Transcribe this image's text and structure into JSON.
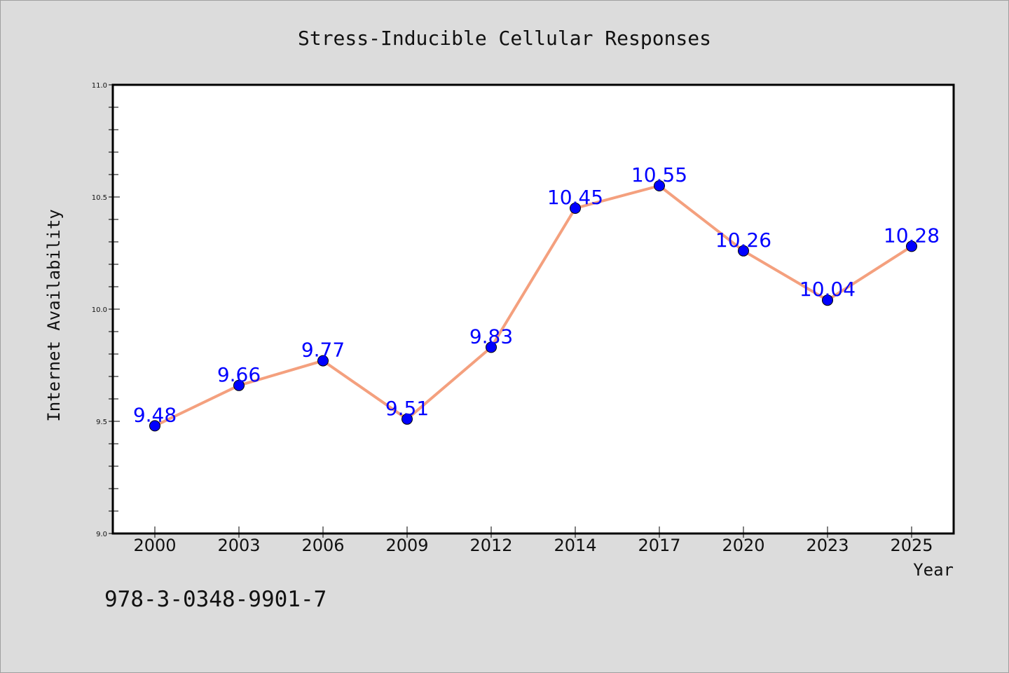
{
  "footer": {
    "isbn": "978-3-0348-9901-7"
  },
  "chart_data": {
    "type": "line",
    "title": "Stress-Inducible Cellular Responses",
    "xlabel": "Year",
    "ylabel": "Internet Availability",
    "categories": [
      "2000",
      "2003",
      "2006",
      "2009",
      "2012",
      "2014",
      "2017",
      "2020",
      "2023",
      "2025"
    ],
    "series": [
      {
        "values": [
          9.48,
          9.66,
          9.77,
          9.51,
          9.83,
          10.45,
          10.55,
          10.26,
          10.04,
          10.28
        ]
      }
    ],
    "data_labels": [
      "9.48",
      "9.66",
      "9.77",
      "9.51",
      "9.83",
      "10.45",
      "10.55",
      "10.26",
      "10.04",
      "10.28"
    ],
    "ylim": [
      9.0,
      11.0
    ],
    "yticks": [
      "9.0",
      "9.5",
      "10.0",
      "10.5",
      "11.0"
    ],
    "grid": false,
    "line_color": "#f4a07e",
    "marker_color": "#0000ff",
    "label_color": "#0000ff"
  }
}
